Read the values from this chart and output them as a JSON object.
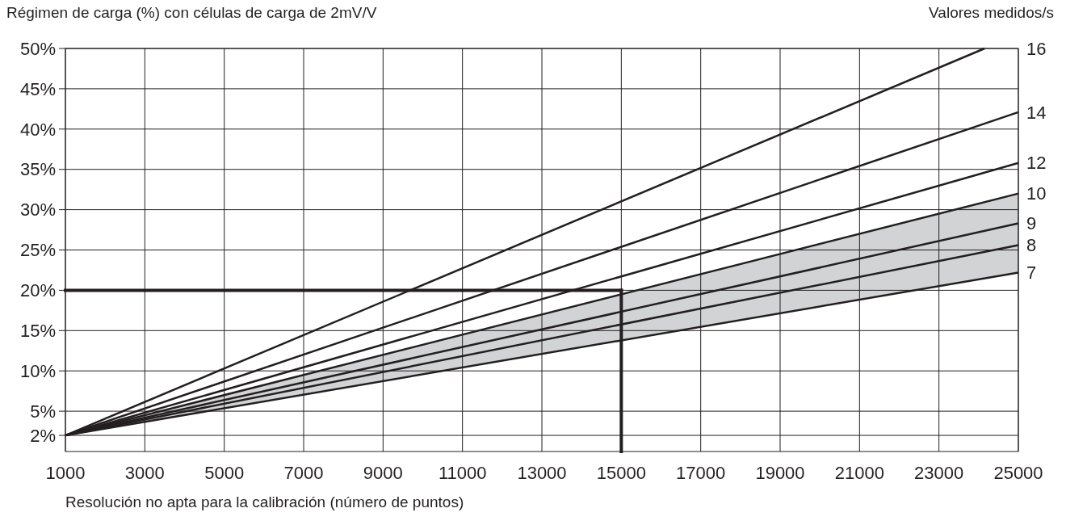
{
  "chart_data": {
    "type": "line",
    "ylabel": "Régimen de carga (%) con células de carga de 2mV/V",
    "xlabel": "Resolución no apta para la calibración (número de puntos)",
    "legend_title": "Valores medidos/s",
    "xlim": [
      1000,
      25000
    ],
    "xticks": [
      1000,
      3000,
      5000,
      7000,
      9000,
      11000,
      13000,
      15000,
      17000,
      19000,
      21000,
      23000,
      25000
    ],
    "ylim": [
      0,
      50
    ],
    "yticks": [
      {
        "value": 2,
        "label": "2%"
      },
      {
        "value": 5,
        "label": "5%"
      },
      {
        "value": 10,
        "label": "10%"
      },
      {
        "value": 15,
        "label": "15%"
      },
      {
        "value": 20,
        "label": "20%"
      },
      {
        "value": 25,
        "label": "25%"
      },
      {
        "value": 30,
        "label": "30%"
      },
      {
        "value": 35,
        "label": "35%"
      },
      {
        "value": 40,
        "label": "40%"
      },
      {
        "value": 45,
        "label": "45%"
      },
      {
        "value": 50,
        "label": "50%"
      }
    ],
    "grid": true,
    "series": [
      {
        "name": "16",
        "color": "#231f20",
        "x": [
          1000,
          24150
        ],
        "values": [
          2,
          50
        ]
      },
      {
        "name": "14",
        "color": "#231f20",
        "x": [
          1000,
          25000
        ],
        "values": [
          2,
          42.1
        ]
      },
      {
        "name": "12",
        "color": "#231f20",
        "x": [
          1000,
          25000
        ],
        "values": [
          2,
          35.8
        ]
      },
      {
        "name": "10",
        "color": "#231f20",
        "x": [
          1000,
          25000
        ],
        "values": [
          2,
          32.0
        ]
      },
      {
        "name": "9",
        "color": "#231f20",
        "x": [
          1000,
          25000
        ],
        "values": [
          2,
          28.3
        ],
        "lower": [
          2,
          22.2
        ],
        "upper": [
          2,
          32.0
        ]
      },
      {
        "name": "8",
        "color": "#231f20",
        "x": [
          1000,
          25000
        ],
        "values": [
          2,
          25.6
        ]
      },
      {
        "name": "7",
        "color": "#231f20",
        "x": [
          1000,
          25000
        ],
        "values": [
          2,
          22.2
        ]
      }
    ],
    "ref_lines": [
      {
        "axis": "y",
        "value": 20,
        "color": "#231f20"
      },
      {
        "axis": "x",
        "value": 15000,
        "color": "#231f20"
      }
    ]
  }
}
